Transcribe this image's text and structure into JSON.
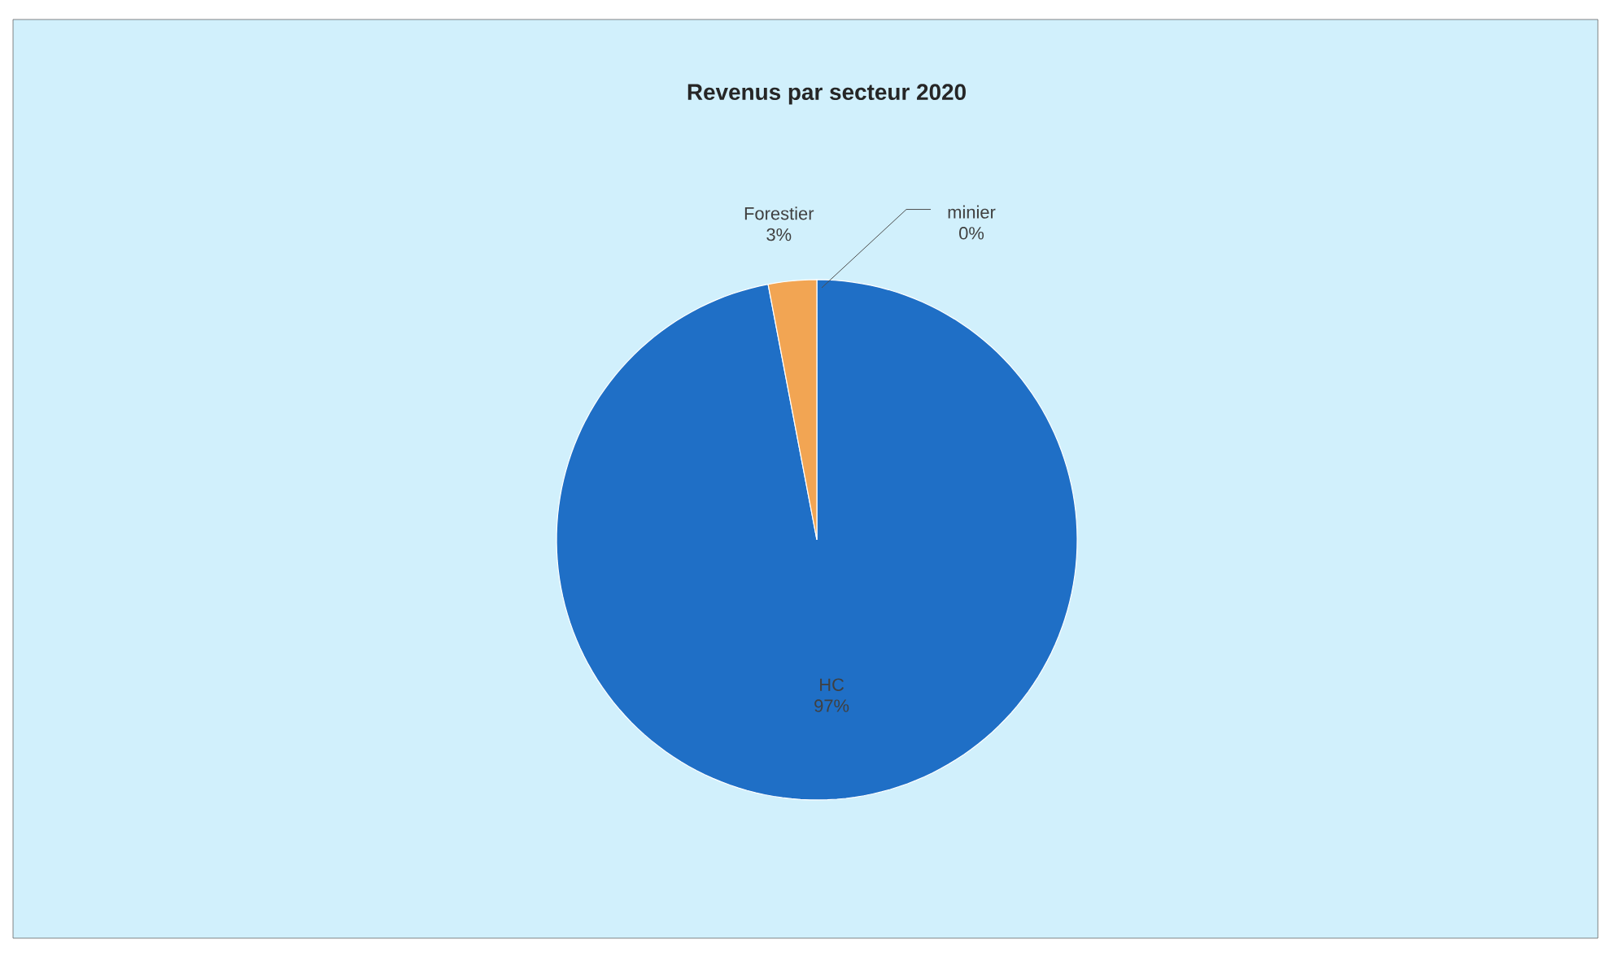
{
  "chart_data": {
    "type": "pie",
    "title": "Revenus par secteur 2020",
    "categories": [
      "HC",
      "Forestier",
      "minier"
    ],
    "values": [
      97,
      3,
      0
    ],
    "colors": [
      "#1f6fc6",
      "#f2a553",
      "#a5a5a5"
    ],
    "value_labels": [
      "97%",
      "3%",
      "0%"
    ]
  }
}
